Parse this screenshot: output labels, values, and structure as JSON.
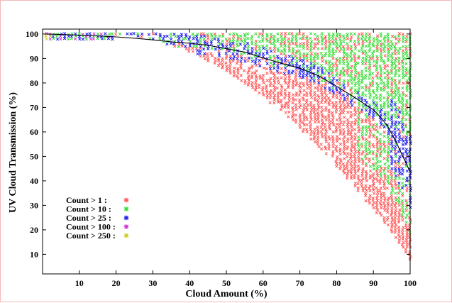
{
  "chart_data": {
    "type": "scatter",
    "xlabel": "Cloud Amount (%)",
    "ylabel": "UV Cloud Transmission (%)",
    "xlim": [
      0,
      100
    ],
    "ylim": [
      2,
      102
    ],
    "xticks": [
      10,
      20,
      30,
      40,
      50,
      60,
      70,
      80,
      90,
      100
    ],
    "yticks": [
      10,
      20,
      30,
      40,
      50,
      60,
      70,
      80,
      90,
      100
    ],
    "grid": false,
    "legend_position": "bottom-left",
    "legend": [
      {
        "label": "Count > 1 :",
        "color": "#ff5555",
        "min_count": 1
      },
      {
        "label": "Count > 10 :",
        "color": "#33dd33",
        "min_count": 10
      },
      {
        "label": "Count > 25 :",
        "color": "#1a1aee",
        "min_count": 25
      },
      {
        "label": "Count > 100 :",
        "color": "#cc33cc",
        "min_count": 100
      },
      {
        "label": "Count > 250 :",
        "color": "#cccc22",
        "min_count": 250
      }
    ],
    "count_bands": [
      {
        "x_range": [
          0,
          2
        ],
        "lower_bound_percent": 98,
        "dominant_counts": [
          100,
          250
        ]
      },
      {
        "x_range": [
          2,
          20
        ],
        "lower_bound_percent": 97,
        "dominant_counts": [
          10,
          25,
          100
        ]
      },
      {
        "x_range": [
          20,
          40
        ],
        "lower_bound_percent": 86,
        "dominant_counts": [
          1,
          10,
          25
        ]
      },
      {
        "x_range": [
          40,
          70
        ],
        "lower_bound_percent": 60,
        "dominant_counts": [
          1,
          10
        ]
      },
      {
        "x_range": [
          70,
          90
        ],
        "lower_bound_percent": 25,
        "dominant_counts": [
          1,
          10
        ]
      },
      {
        "x_range": [
          90,
          100
        ],
        "lower_bound_percent": 8,
        "dominant_counts": [
          1,
          10,
          25
        ]
      }
    ],
    "mean_line": {
      "color": "#000000",
      "x": [
        1,
        5,
        10,
        15,
        20,
        25,
        30,
        35,
        40,
        45,
        50,
        55,
        60,
        65,
        70,
        75,
        80,
        85,
        88,
        90,
        92,
        94,
        96,
        98,
        99,
        100
      ],
      "y": [
        100,
        99.8,
        99.5,
        99.2,
        98.8,
        98.3,
        97.6,
        96.8,
        96.2,
        95.4,
        94,
        92.6,
        90.2,
        88,
        86,
        83,
        78.6,
        74,
        71,
        69,
        66,
        62,
        56.5,
        50,
        47,
        43.5
      ]
    }
  }
}
